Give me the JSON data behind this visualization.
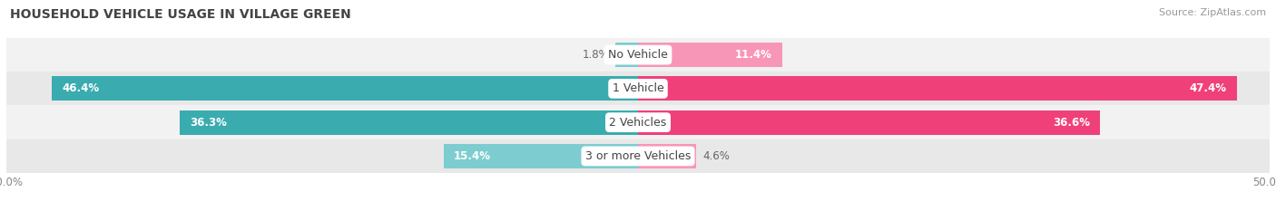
{
  "title": "HOUSEHOLD VEHICLE USAGE IN VILLAGE GREEN",
  "source": "Source: ZipAtlas.com",
  "categories": [
    "No Vehicle",
    "1 Vehicle",
    "2 Vehicles",
    "3 or more Vehicles"
  ],
  "owner_values": [
    1.8,
    46.4,
    36.3,
    15.4
  ],
  "renter_values": [
    11.4,
    47.4,
    36.6,
    4.6
  ],
  "owner_color_dark": "#3aacb0",
  "owner_color_light": "#7dcdd0",
  "renter_color_dark": "#f0407a",
  "renter_color_light": "#f896b8",
  "row_bg_colors": [
    "#f2f2f2",
    "#e8e8e8",
    "#f2f2f2",
    "#e8e8e8"
  ],
  "xlim": 50.0,
  "title_fontsize": 10,
  "label_fontsize": 8.5,
  "tick_fontsize": 8.5,
  "source_fontsize": 8,
  "category_fontsize": 9,
  "bar_height": 0.72
}
